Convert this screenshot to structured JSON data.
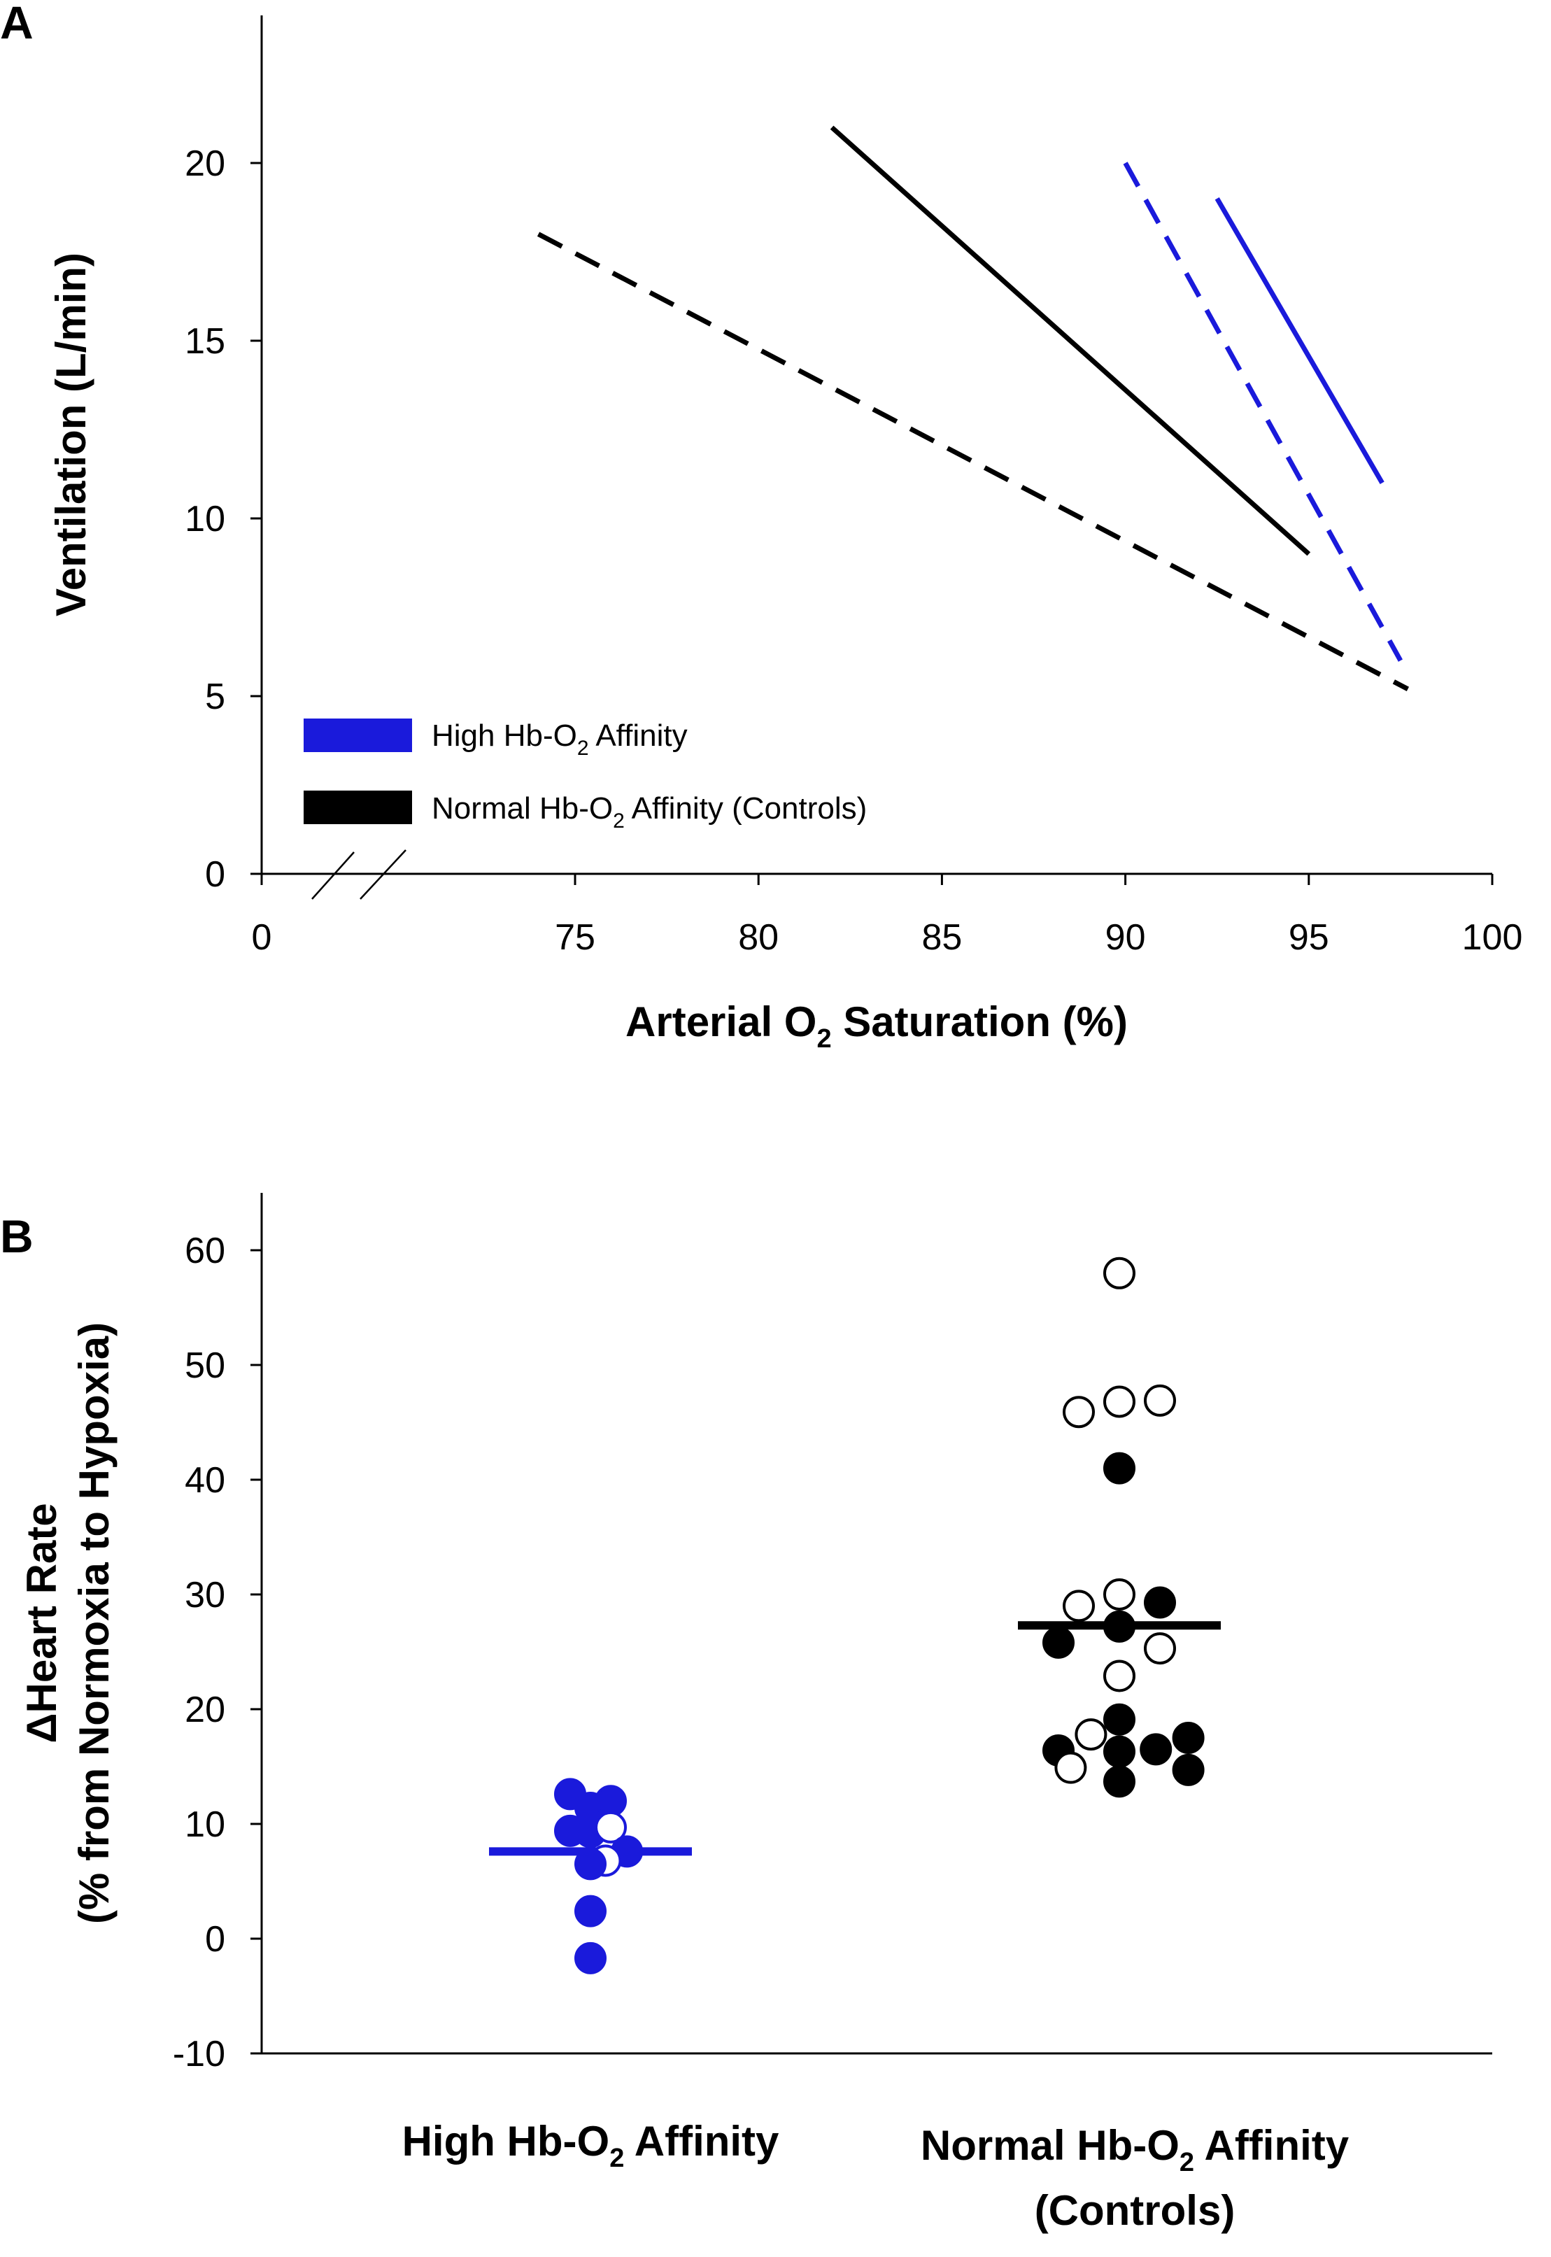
{
  "colors": {
    "high": "#1a1adb",
    "normal": "#000000"
  },
  "chart_data": [
    {
      "panel": "A",
      "type": "line",
      "xlabel": "Arterial O2 Saturation (%)",
      "xlabel_parts": [
        "Arterial O",
        "2",
        " Saturation (%)"
      ],
      "ylabel": "Ventilation (L/min)",
      "xlim": [
        70,
        100
      ],
      "ylim": [
        0,
        24
      ],
      "axis_break": true,
      "x_ticks": [
        {
          "v": 0,
          "label": "0"
        },
        {
          "v": 75,
          "label": "75"
        },
        {
          "v": 80,
          "label": "80"
        },
        {
          "v": 85,
          "label": "85"
        },
        {
          "v": 90,
          "label": "90"
        },
        {
          "v": 95,
          "label": "95"
        },
        {
          "v": 100,
          "label": "100"
        }
      ],
      "y_ticks": [
        {
          "v": 0,
          "label": "0"
        },
        {
          "v": 5,
          "label": "5"
        },
        {
          "v": 10,
          "label": "10"
        },
        {
          "v": 15,
          "label": "15"
        },
        {
          "v": 20,
          "label": "20"
        }
      ],
      "series": [
        {
          "name": "high-solid",
          "group": "high",
          "style": "solid",
          "x": [
            92.5,
            97.0
          ],
          "y": [
            19.0,
            11.0
          ]
        },
        {
          "name": "high-dashed",
          "group": "high",
          "style": "dashed",
          "x": [
            90.0,
            97.5
          ],
          "y": [
            20.0,
            6.0
          ]
        },
        {
          "name": "normal-solid",
          "group": "normal",
          "style": "solid",
          "x": [
            82.0,
            95.0
          ],
          "y": [
            21.0,
            9.0
          ]
        },
        {
          "name": "normal-dashed",
          "group": "normal",
          "style": "dashed",
          "x": [
            74.0,
            97.7
          ],
          "y": [
            18.0,
            5.2
          ]
        }
      ],
      "legend": [
        {
          "group": "high",
          "label_parts": [
            "High Hb-O",
            "2",
            " Affinity"
          ]
        },
        {
          "group": "normal",
          "label_parts": [
            "Normal Hb-O",
            "2",
            " Affinity (Controls)"
          ]
        }
      ],
      "legend_position": "bottom-left"
    },
    {
      "panel": "B",
      "type": "scatter",
      "ylabel_line1": "ΔHeart Rate",
      "ylabel_line2": "(% from Normoxia to Hypoxia)",
      "ylim": [
        -10,
        65
      ],
      "y_ticks": [
        {
          "v": -10,
          "label": "-10"
        },
        {
          "v": 0,
          "label": "0"
        },
        {
          "v": 10,
          "label": "10"
        },
        {
          "v": 20,
          "label": "20"
        },
        {
          "v": 30,
          "label": "30"
        },
        {
          "v": 40,
          "label": "40"
        },
        {
          "v": 50,
          "label": "50"
        },
        {
          "v": 60,
          "label": "60"
        }
      ],
      "categories": [
        {
          "group": "high",
          "label_parts": [
            "High Hb-O",
            "2",
            " Affinity"
          ],
          "label_line2": "",
          "mean": 7.6,
          "points": [
            {
              "y": 12.6,
              "off": -0.5,
              "filled": true
            },
            {
              "y": 11.4,
              "off": 0.0,
              "filled": true
            },
            {
              "y": 12.0,
              "off": 0.5,
              "filled": true
            },
            {
              "y": 9.4,
              "off": -0.5,
              "filled": true
            },
            {
              "y": 9.3,
              "off": 0.0,
              "filled": true
            },
            {
              "y": 9.7,
              "off": 0.5,
              "filled": false
            },
            {
              "y": 7.6,
              "off": 0.9,
              "filled": true
            },
            {
              "y": 6.8,
              "off": 0.37,
              "filled": false
            },
            {
              "y": 6.5,
              "off": 0.0,
              "filled": true
            },
            {
              "y": 2.4,
              "off": 0.0,
              "filled": true
            },
            {
              "y": -1.7,
              "off": 0.0,
              "filled": true
            }
          ]
        },
        {
          "group": "normal",
          "label_parts": [
            "Normal Hb-O",
            "2",
            " Affinity"
          ],
          "label_line2": "(Controls)",
          "mean": 27.3,
          "points": [
            {
              "y": 58.0,
              "off": 0.0,
              "filled": false
            },
            {
              "y": 46.8,
              "off": 0.0,
              "filled": false
            },
            {
              "y": 46.9,
              "off": 1.0,
              "filled": false
            },
            {
              "y": 45.9,
              "off": -1.0,
              "filled": false
            },
            {
              "y": 41.0,
              "off": 0.0,
              "filled": true
            },
            {
              "y": 30.0,
              "off": 0.0,
              "filled": false
            },
            {
              "y": 29.0,
              "off": -1.0,
              "filled": false
            },
            {
              "y": 29.3,
              "off": 1.0,
              "filled": true
            },
            {
              "y": 27.2,
              "off": 0.0,
              "filled": true
            },
            {
              "y": 25.8,
              "off": -1.5,
              "filled": true
            },
            {
              "y": 25.3,
              "off": 1.0,
              "filled": false
            },
            {
              "y": 22.9,
              "off": 0.0,
              "filled": false
            },
            {
              "y": 19.1,
              "off": 0.0,
              "filled": true
            },
            {
              "y": 17.8,
              "off": -0.7,
              "filled": false
            },
            {
              "y": 17.5,
              "off": 1.7,
              "filled": true
            },
            {
              "y": 16.4,
              "off": -1.5,
              "filled": true
            },
            {
              "y": 16.3,
              "off": 0.0,
              "filled": true
            },
            {
              "y": 16.5,
              "off": 0.9,
              "filled": true
            },
            {
              "y": 14.9,
              "off": -1.2,
              "filled": false
            },
            {
              "y": 14.7,
              "off": 1.7,
              "filled": true
            },
            {
              "y": 13.7,
              "off": 0.0,
              "filled": true
            }
          ]
        }
      ]
    }
  ]
}
